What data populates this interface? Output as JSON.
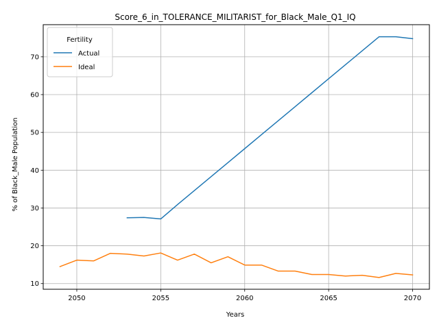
{
  "chart_data": {
    "type": "line",
    "title": "Score_6_in_TOLERANCE_MILITARIST_for_Black_Male_Q1_IQ",
    "xlabel": "Years",
    "ylabel": "% of Black_Male Population",
    "xlim": [
      2048.0,
      2071.0
    ],
    "ylim": [
      8.5,
      78.5
    ],
    "xticks": [
      2050,
      2055,
      2060,
      2065,
      2070
    ],
    "yticks": [
      10,
      20,
      30,
      40,
      50,
      60,
      70
    ],
    "grid": true,
    "legend": {
      "title": "Fertility",
      "placement": "upper-left"
    },
    "series": [
      {
        "name": "Actual",
        "color": "#1f77b4",
        "x": [
          2053,
          2054,
          2055,
          2056,
          2057,
          2058,
          2059,
          2060,
          2061,
          2062,
          2063,
          2064,
          2065,
          2066,
          2067,
          2068,
          2069,
          2070
        ],
        "y": [
          27.4,
          27.5,
          27.1,
          30.9,
          34.6,
          38.3,
          42.0,
          45.7,
          49.4,
          53.1,
          56.8,
          60.5,
          64.2,
          67.9,
          71.6,
          75.3,
          75.3,
          74.8
        ]
      },
      {
        "name": "Ideal",
        "color": "#ff7f0e",
        "x": [
          2049,
          2050,
          2051,
          2052,
          2053,
          2054,
          2055,
          2056,
          2057,
          2058,
          2059,
          2060,
          2061,
          2062,
          2063,
          2064,
          2065,
          2066,
          2067,
          2068,
          2069,
          2070
        ],
        "y": [
          14.5,
          16.2,
          16.0,
          18.0,
          17.8,
          17.3,
          18.1,
          16.2,
          17.8,
          15.5,
          17.1,
          14.9,
          14.9,
          13.3,
          13.3,
          12.4,
          12.4,
          12.0,
          12.2,
          11.6,
          12.7,
          12.3
        ]
      }
    ]
  }
}
